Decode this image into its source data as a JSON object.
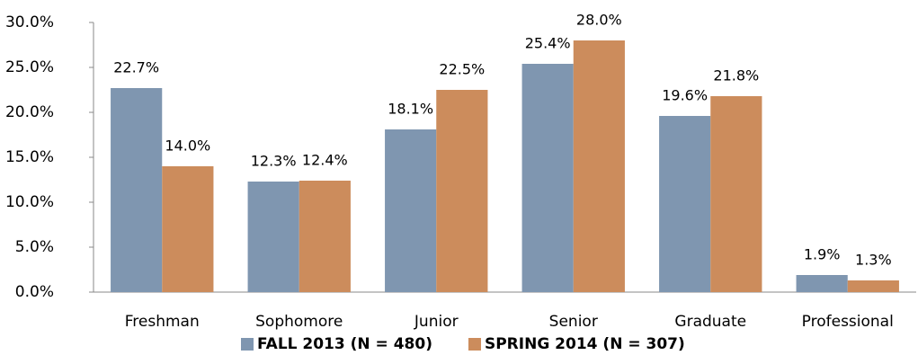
{
  "chart_data": {
    "type": "bar",
    "categories": [
      "Freshman",
      "Sophomore",
      "Junior",
      "Senior",
      "Graduate",
      "Professional"
    ],
    "series": [
      {
        "name": "FALL 2013 (N = 480)",
        "color": "#7f96b0",
        "values": [
          22.7,
          12.3,
          18.1,
          25.4,
          19.6,
          1.9
        ],
        "value_labels": [
          "22.7%",
          "12.3%",
          "18.1%",
          "25.4%",
          "19.6%",
          "1.9%"
        ]
      },
      {
        "name": "SPRING 2014 (N = 307)",
        "color": "#cc8c5c",
        "values": [
          14.0,
          12.4,
          22.5,
          28.0,
          21.8,
          1.3
        ],
        "value_labels": [
          "14.0%",
          "12.4%",
          "22.5%",
          "28.0%",
          "21.8%",
          "1.3%"
        ]
      }
    ],
    "ylim": [
      0,
      30
    ],
    "yticks": [
      {
        "value": 0,
        "label": "0.0%"
      },
      {
        "value": 5,
        "label": "5.0%"
      },
      {
        "value": 10,
        "label": "10.0%"
      },
      {
        "value": 15,
        "label": "15.0%"
      },
      {
        "value": 20,
        "label": "20.0%"
      },
      {
        "value": 25,
        "label": "25.0%"
      },
      {
        "value": 30,
        "label": "30.0%"
      }
    ],
    "grid": false,
    "legend": "bottom"
  }
}
